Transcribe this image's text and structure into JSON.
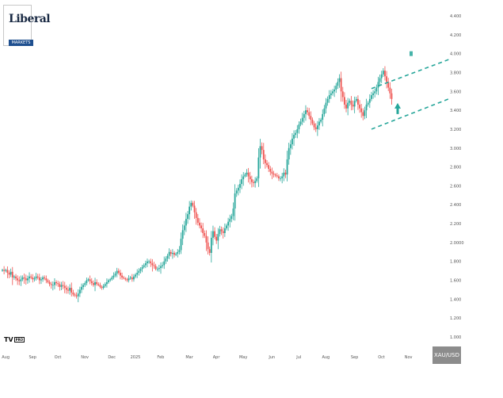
{
  "logo": {
    "word": "Liberal",
    "sub": "MARKETS",
    "tv": "TV",
    "tv_badge": "PRO"
  },
  "symbol": "XAU/USD",
  "chart_data": {
    "type": "candlestick",
    "ylim": [
      0.9,
      4.5
    ],
    "y_ticks": [
      "4.400",
      "4.200",
      "4.000",
      "3.800",
      "3.600",
      "3.400",
      "3.200",
      "3.000",
      "2.800",
      "2.600",
      "2.400",
      "2.200",
      "2.0000",
      "1.800",
      "1.600",
      "1.400",
      "1.200",
      "1.000"
    ],
    "y_tick_values": [
      4.4,
      4.2,
      4.0,
      3.8,
      3.6,
      3.4,
      3.2,
      3.0,
      2.8,
      2.6,
      2.4,
      2.2,
      2.0,
      1.8,
      1.6,
      1.4,
      1.2,
      1.0
    ],
    "x_ticks": [
      "Aug",
      "Sep",
      "Oct",
      "Nov",
      "Dec",
      "2025",
      "Feb",
      "Mar",
      "Apr",
      "May",
      "Jun",
      "Jul",
      "Aug",
      "Sep",
      "Oct",
      "Nov"
    ],
    "x_tick_index": [
      1,
      17,
      32,
      48,
      64,
      78,
      93,
      110,
      126,
      142,
      159,
      175,
      191,
      208,
      224,
      240
    ],
    "closes": [
      1.71,
      1.7,
      1.71,
      1.68,
      1.66,
      1.69,
      1.63,
      1.64,
      1.62,
      1.6,
      1.59,
      1.61,
      1.63,
      1.62,
      1.6,
      1.62,
      1.64,
      1.63,
      1.61,
      1.62,
      1.64,
      1.63,
      1.6,
      1.61,
      1.63,
      1.62,
      1.6,
      1.58,
      1.56,
      1.55,
      1.55,
      1.58,
      1.57,
      1.56,
      1.53,
      1.55,
      1.54,
      1.52,
      1.5,
      1.49,
      1.52,
      1.47,
      1.45,
      1.44,
      1.43,
      1.46,
      1.5,
      1.53,
      1.55,
      1.57,
      1.6,
      1.61,
      1.59,
      1.57,
      1.55,
      1.58,
      1.56,
      1.55,
      1.53,
      1.52,
      1.54,
      1.56,
      1.58,
      1.6,
      1.61,
      1.63,
      1.65,
      1.67,
      1.7,
      1.68,
      1.65,
      1.63,
      1.62,
      1.61,
      1.6,
      1.62,
      1.63,
      1.61,
      1.64,
      1.66,
      1.68,
      1.7,
      1.72,
      1.74,
      1.76,
      1.78,
      1.8,
      1.8,
      1.78,
      1.76,
      1.75,
      1.72,
      1.72,
      1.73,
      1.75,
      1.76,
      1.8,
      1.83,
      1.86,
      1.9,
      1.88,
      1.89,
      1.87,
      1.88,
      1.9,
      1.92,
      2.04,
      2.13,
      2.18,
      2.25,
      2.3,
      2.38,
      2.42,
      2.39,
      2.32,
      2.26,
      2.21,
      2.18,
      2.15,
      2.1,
      2.07,
      2.0,
      1.93,
      1.89,
      2.05,
      2.12,
      2.06,
      2.02,
      2.09,
      2.14,
      2.12,
      2.1,
      2.15,
      2.18,
      2.22,
      2.25,
      2.28,
      2.36,
      2.52,
      2.55,
      2.58,
      2.62,
      2.67,
      2.7,
      2.72,
      2.74,
      2.7,
      2.67,
      2.64,
      2.63,
      2.65,
      2.68,
      2.9,
      3.02,
      2.98,
      2.88,
      2.84,
      2.82,
      2.78,
      2.75,
      2.73,
      2.72,
      2.71,
      2.7,
      2.68,
      2.68,
      2.7,
      2.74,
      2.72,
      2.88,
      3.0,
      3.04,
      3.1,
      3.14,
      3.16,
      3.2,
      3.25,
      3.28,
      3.32,
      3.36,
      3.4,
      3.38,
      3.34,
      3.3,
      3.26,
      3.22,
      3.2,
      3.24,
      3.28,
      3.3,
      3.36,
      3.42,
      3.48,
      3.52,
      3.56,
      3.58,
      3.6,
      3.62,
      3.66,
      3.7,
      3.74,
      3.6,
      3.54,
      3.46,
      3.42,
      3.48,
      3.5,
      3.46,
      3.44,
      3.5,
      3.52,
      3.46,
      3.42,
      3.38,
      3.34,
      3.4,
      3.46,
      3.48,
      3.52,
      3.56,
      3.58,
      3.6,
      3.64,
      3.7,
      3.74,
      3.78,
      3.82,
      3.76,
      3.7,
      3.64,
      3.58,
      3.52
    ],
    "channel_upper": {
      "from": [
        219,
        3.63
      ],
      "to": [
        261,
        3.93
      ]
    },
    "channel_lower": {
      "from": [
        219,
        3.2
      ],
      "to": [
        262,
        3.52
      ]
    },
    "up_color": "#26a69a",
    "down_color": "#ef5350",
    "channel_color": "#26a69a",
    "arrow_color": "#26a69a"
  }
}
